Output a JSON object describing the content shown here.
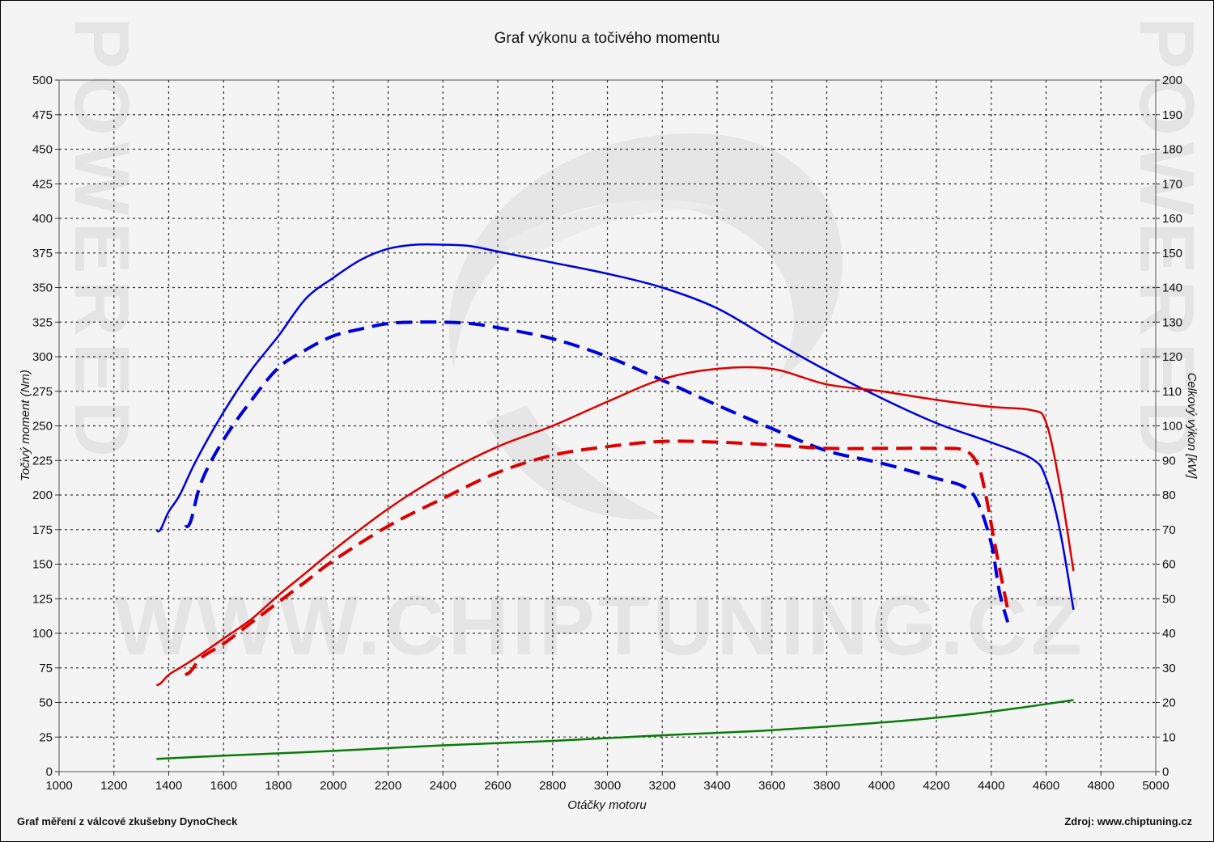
{
  "chart_data": {
    "type": "line",
    "title": "Graf výkonu a točivého momentu",
    "xlabel": "Otáčky motoru",
    "ylabel": "Točivý moment (Nm)",
    "y2label": "Celkový výkon [kW]",
    "xlim": [
      1000,
      5000
    ],
    "ylim": [
      0,
      500
    ],
    "y2lim": [
      0,
      200
    ],
    "x_ticks": [
      1000,
      1200,
      1400,
      1600,
      1800,
      2000,
      2200,
      2400,
      2600,
      2800,
      3000,
      3200,
      3400,
      3600,
      3800,
      4000,
      4200,
      4400,
      4600,
      4800,
      5000
    ],
    "y_ticks": [
      0,
      25,
      50,
      75,
      100,
      125,
      150,
      175,
      200,
      225,
      250,
      275,
      300,
      325,
      350,
      375,
      400,
      425,
      450,
      475,
      500
    ],
    "y2_ticks": [
      0,
      10,
      20,
      30,
      40,
      50,
      60,
      70,
      80,
      90,
      100,
      110,
      120,
      130,
      140,
      150,
      160,
      170,
      180,
      190,
      200
    ],
    "grid": true,
    "series": [
      {
        "axis": "left",
        "color": "#0000dd",
        "dash": false,
        "x": [
          1355,
          1370,
          1400,
          1440,
          1500,
          1600,
          1700,
          1800,
          1900,
          2000,
          2100,
          2200,
          2300,
          2400,
          2500,
          2600,
          2700,
          2800,
          3000,
          3200,
          3400,
          3600,
          3800,
          4000,
          4200,
          4400,
          4550,
          4600,
          4650,
          4700
        ],
        "y": [
          174,
          175,
          188,
          200,
          225,
          260,
          290,
          315,
          342,
          357,
          370,
          378,
          381,
          381,
          380,
          376,
          372,
          368,
          360,
          350,
          335,
          312,
          290,
          270,
          252,
          238,
          226,
          212,
          175,
          117
        ]
      },
      {
        "axis": "left",
        "color": "#0000dd",
        "dash": true,
        "x": [
          1460,
          1480,
          1520,
          1600,
          1700,
          1800,
          1900,
          2000,
          2100,
          2200,
          2300,
          2400,
          2500,
          2600,
          2800,
          3000,
          3200,
          3400,
          3600,
          3800,
          4000,
          4200,
          4300,
          4350,
          4400,
          4430,
          4460
        ],
        "y": [
          177,
          181,
          210,
          240,
          268,
          292,
          305,
          315,
          320,
          324,
          325,
          325,
          324,
          321,
          313,
          300,
          283,
          265,
          248,
          232,
          223,
          212,
          206,
          195,
          165,
          130,
          108
        ]
      },
      {
        "axis": "right",
        "color": "#dd0000",
        "dash": false,
        "x": [
          1355,
          1370,
          1400,
          1440,
          1500,
          1600,
          1700,
          1800,
          1900,
          2000,
          2200,
          2400,
          2600,
          2800,
          3000,
          3200,
          3400,
          3600,
          3800,
          4000,
          4200,
          4400,
          4550,
          4600,
          4650,
          4700
        ],
        "y": [
          25,
          25.5,
          28,
          30,
          33,
          38.5,
          44,
          51,
          57.5,
          64,
          76,
          86,
          94,
          100,
          107,
          113.5,
          116.5,
          116.5,
          112,
          110,
          107.5,
          105.5,
          104.5,
          101,
          83,
          58
        ]
      },
      {
        "axis": "right",
        "color": "#dd0000",
        "dash": true,
        "x": [
          1460,
          1480,
          1520,
          1600,
          1700,
          1800,
          1900,
          2000,
          2200,
          2400,
          2600,
          2800,
          3000,
          3200,
          3400,
          3600,
          3800,
          4000,
          4200,
          4300,
          4350,
          4380,
          4420,
          4460
        ],
        "y": [
          28,
          29,
          33,
          37,
          43,
          49,
          55,
          61,
          71,
          79,
          86.5,
          91.5,
          94,
          95.5,
          95.3,
          94.5,
          93.5,
          93.5,
          93.5,
          93,
          89,
          80,
          63,
          47
        ]
      },
      {
        "axis": "right",
        "color": "#0a7a0a",
        "dash": false,
        "x": [
          1355,
          1600,
          2000,
          2400,
          2800,
          3200,
          3600,
          4000,
          4300,
          4500,
          4700
        ],
        "y": [
          3.7,
          4.6,
          6,
          7.6,
          8.9,
          10.5,
          12,
          14.2,
          16.4,
          18.4,
          20.7
        ]
      }
    ]
  },
  "footer": {
    "left": "Graf měření z válcové zkušebny DynoCheck",
    "right": "Zdroj: www.chiptuning.cz"
  },
  "watermark": {
    "main": "WWW.CHIPTUNING.CZ",
    "side": "POWERED"
  }
}
